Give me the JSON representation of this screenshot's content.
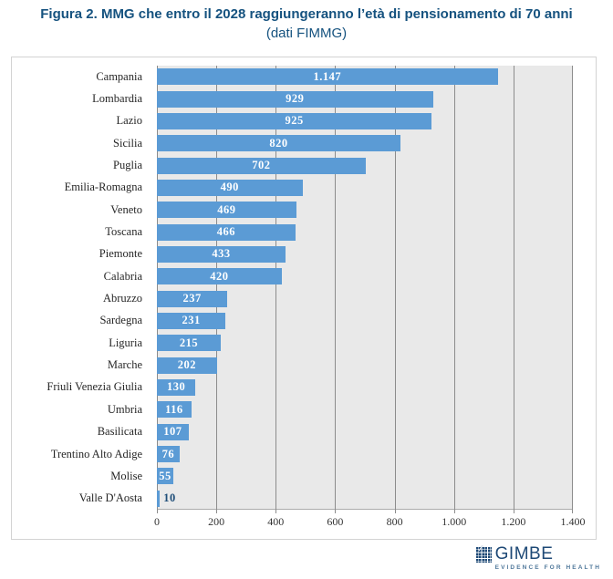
{
  "title": "Figura 2. MMG che entro il 2028 raggiungeranno l’età di pensionamento di 70 anni",
  "subtitle": "(dati FIMMG)",
  "chart_data": {
    "type": "bar",
    "orientation": "horizontal",
    "title": "Figura 2. MMG che entro il 2028 raggiungeranno l’età di pensionamento di 70 anni (dati FIMMG)",
    "categories": [
      "Campania",
      "Lombardia",
      "Lazio",
      "Sicilia",
      "Puglia",
      "Emilia-Romagna",
      "Veneto",
      "Toscana",
      "Piemonte",
      "Calabria",
      "Abruzzo",
      "Sardegna",
      "Liguria",
      "Marche",
      "Friuli Venezia Giulia",
      "Umbria",
      "Basilicata",
      "Trentino Alto Adige",
      "Molise",
      "Valle D'Aosta"
    ],
    "values": [
      1147,
      929,
      925,
      820,
      702,
      490,
      469,
      466,
      433,
      420,
      237,
      231,
      215,
      202,
      130,
      116,
      107,
      76,
      55,
      10
    ],
    "value_labels": [
      "1.147",
      "929",
      "925",
      "820",
      "702",
      "490",
      "469",
      "466",
      "433",
      "420",
      "237",
      "231",
      "215",
      "202",
      "130",
      "116",
      "107",
      "76",
      "55",
      "10"
    ],
    "xlim": [
      0,
      1400
    ],
    "x_ticks": [
      0,
      200,
      400,
      600,
      800,
      1000,
      1200,
      1400
    ],
    "x_tick_labels": [
      "0",
      "200",
      "400",
      "600",
      "800",
      "1.000",
      "1.200",
      "1.400"
    ],
    "grid": true,
    "legend": "none",
    "bar_color": "#5B9BD5",
    "plot_background": "#E9E9E9",
    "gridline_color": "#8C8C8C",
    "value_label_inside_color": "#FFFFFF",
    "value_label_outside_color": "#1F4E79"
  },
  "logo": {
    "name": "GIMBE",
    "tagline": "EVIDENCE FOR HEALTH"
  }
}
